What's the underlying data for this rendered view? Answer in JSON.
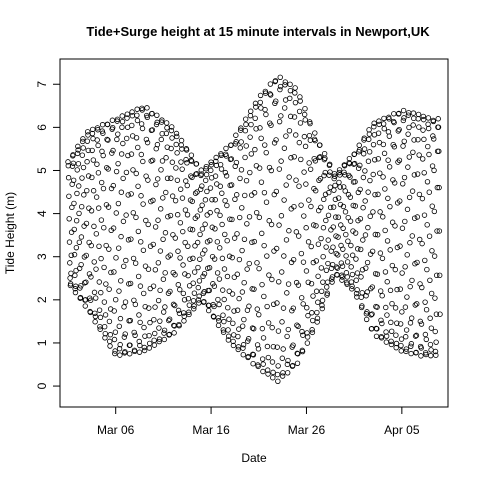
{
  "chart_data": {
    "type": "scatter",
    "title": "Tide+Surge height at 15 minute intervals in Newport,UK",
    "xlabel": "Date",
    "ylabel": "Tide Height (m)",
    "x_ticks": [
      "Mar 06",
      "Mar 16",
      "Mar 26",
      "Apr 05"
    ],
    "y_ticks": [
      0,
      1,
      2,
      3,
      4,
      5,
      6,
      7
    ],
    "ylim": [
      -0.3,
      7.4
    ],
    "xlim": [
      "2013-03-01",
      "2013-04-09"
    ],
    "grid": false,
    "legend": "none",
    "marker": "open circle",
    "color": "#000000",
    "interval_minutes": 15,
    "spring_high": [
      {
        "date": "2013-03-01",
        "value": 5.2
      },
      {
        "date": "2013-03-03",
        "value": 5.9
      },
      {
        "date": "2013-03-06",
        "value": 6.2
      },
      {
        "date": "2013-03-09",
        "value": 6.5
      },
      {
        "date": "2013-03-12",
        "value": 6.0
      },
      {
        "date": "2013-03-15",
        "value": 5.0
      },
      {
        "date": "2013-03-18",
        "value": 5.6
      },
      {
        "date": "2013-03-21",
        "value": 6.7
      },
      {
        "date": "2013-03-23",
        "value": 7.2
      },
      {
        "date": "2013-03-25",
        "value": 6.9
      },
      {
        "date": "2013-03-27",
        "value": 5.8
      },
      {
        "date": "2013-03-29",
        "value": 4.9
      },
      {
        "date": "2013-03-31",
        "value": 5.4
      },
      {
        "date": "2013-04-02",
        "value": 6.1
      },
      {
        "date": "2013-04-05",
        "value": 6.4
      },
      {
        "date": "2013-04-07",
        "value": 6.3
      },
      {
        "date": "2013-04-08",
        "value": 6.2
      }
    ],
    "spring_low": [
      {
        "date": "2013-03-01",
        "value": 2.4
      },
      {
        "date": "2013-03-03",
        "value": 1.8
      },
      {
        "date": "2013-03-06",
        "value": 0.7
      },
      {
        "date": "2013-03-09",
        "value": 0.8
      },
      {
        "date": "2013-03-12",
        "value": 1.2
      },
      {
        "date": "2013-03-15",
        "value": 2.0
      },
      {
        "date": "2013-03-18",
        "value": 1.0
      },
      {
        "date": "2013-03-21",
        "value": 0.4
      },
      {
        "date": "2013-03-23",
        "value": 0.1
      },
      {
        "date": "2013-03-25",
        "value": 0.5
      },
      {
        "date": "2013-03-27",
        "value": 1.4
      },
      {
        "date": "2013-03-29",
        "value": 2.6
      },
      {
        "date": "2013-03-31",
        "value": 2.2
      },
      {
        "date": "2013-04-02",
        "value": 1.2
      },
      {
        "date": "2013-04-05",
        "value": 0.8
      },
      {
        "date": "2013-04-07",
        "value": 0.7
      },
      {
        "date": "2013-04-08",
        "value": 0.7
      }
    ]
  }
}
